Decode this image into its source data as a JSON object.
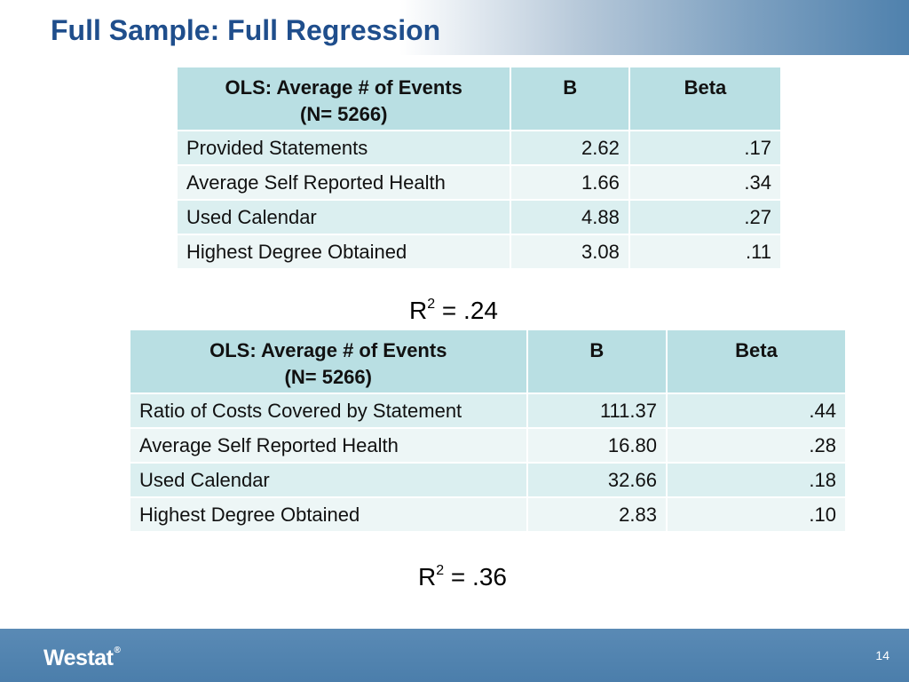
{
  "slide": {
    "title": "Full Sample: Full Regression",
    "page_number": "14",
    "logo_text": "Westat",
    "logo_mark": "®"
  },
  "table1": {
    "headers": [
      "OLS: Average # of Events",
      "(N= 5266)",
      "B",
      "Beta"
    ],
    "rows": [
      [
        "Provided Statements",
        "2.62",
        ".17"
      ],
      [
        "Average Self Reported Health",
        "1.66",
        ".34"
      ],
      [
        "Used Calendar",
        "4.88",
        ".27"
      ],
      [
        "Highest Degree Obtained",
        "3.08",
        ".11"
      ]
    ],
    "r_squared": {
      "label": "R",
      "superscript": "2",
      "value": "= .24"
    }
  },
  "table2": {
    "headers": [
      "OLS: Average # of Events",
      "(N= 5266)",
      "B",
      "Beta"
    ],
    "rows": [
      [
        "Ratio of Costs Covered by Statement",
        "111.37",
        ".44"
      ],
      [
        "Average Self Reported Health",
        "16.80",
        ".28"
      ],
      [
        "Used Calendar",
        "32.66",
        ".18"
      ],
      [
        "Highest Degree Obtained",
        "2.83",
        ".10"
      ]
    ],
    "r_squared": {
      "label": "R",
      "superscript": "2",
      "value": "= .36"
    }
  },
  "colors": {
    "title": "#1f4e8c",
    "header_fill": "#b9dfe3",
    "row_fill_odd": "#dbeff0",
    "row_fill_even": "#edf6f6",
    "footer": "#4b7eab"
  }
}
